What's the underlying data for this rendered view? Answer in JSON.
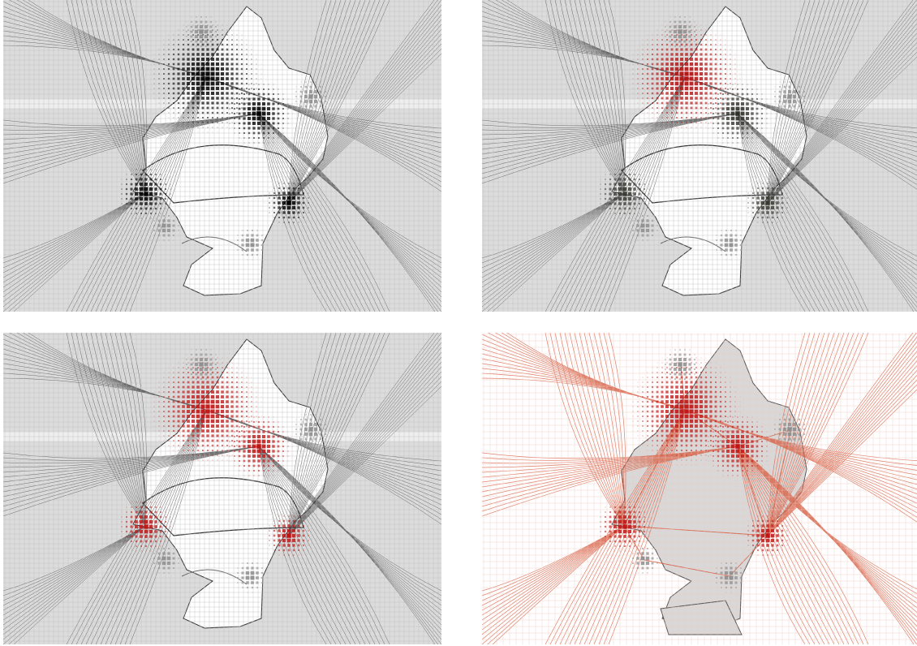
{
  "figure": {
    "panels": [
      {
        "id": "p1",
        "variant": "grayscale",
        "bg": "#d9d9d9",
        "line": "#333333",
        "hot": "#000000",
        "hot2": "#111111",
        "island": "#ffffff"
      },
      {
        "id": "p2",
        "variant": "red-primary",
        "bg": "#d9d9d9",
        "line": "#444444",
        "hot": "#b30f0f",
        "hot2": "#2f2f2a",
        "island": "#ffffff"
      },
      {
        "id": "p3",
        "variant": "red-multi",
        "bg": "#d9d9d9",
        "line": "#444444",
        "hot": "#c01515",
        "hot2": "#c01515",
        "island": "#ffffff"
      },
      {
        "id": "p4",
        "variant": "red-network",
        "bg": "#ffffff",
        "line": "#d9694f",
        "hot": "#c01515",
        "hot2": "#c01515",
        "island": "#d6d6d6"
      }
    ]
  }
}
